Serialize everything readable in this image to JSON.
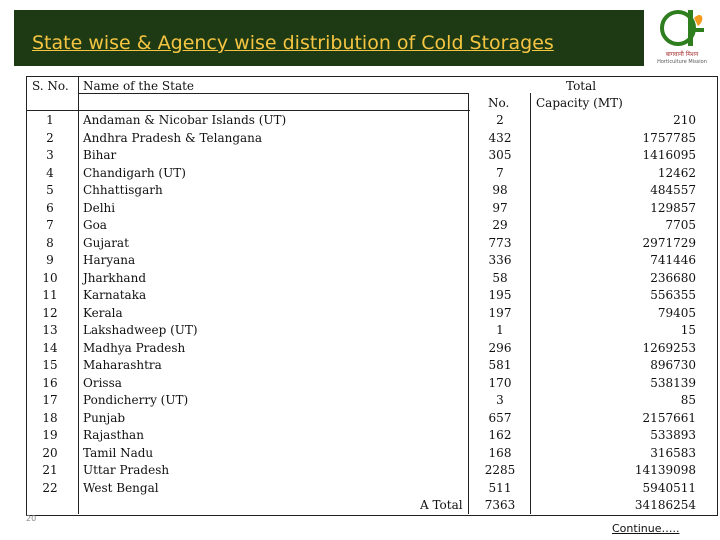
{
  "header": {
    "title": "State wise & Agency wise distribution of Cold Storages",
    "logo_line1": "बागवानी मिशन",
    "logo_line2": "Horticulture Mission"
  },
  "table": {
    "col_sno": "S. No.",
    "col_name": "Name of the State",
    "col_total": "Total",
    "col_no": "No.",
    "col_capacity": "Capacity (MT)",
    "rows": [
      {
        "sno": "1",
        "name": "Andaman & Nicobar Islands (UT)",
        "no": "2",
        "capacity": "210"
      },
      {
        "sno": "2",
        "name": "Andhra Pradesh & Telangana",
        "no": "432",
        "capacity": "1757785"
      },
      {
        "sno": "3",
        "name": "Bihar",
        "no": "305",
        "capacity": "1416095"
      },
      {
        "sno": "4",
        "name": "Chandigarh (UT)",
        "no": "7",
        "capacity": "12462"
      },
      {
        "sno": "5",
        "name": "Chhattisgarh",
        "no": "98",
        "capacity": "484557"
      },
      {
        "sno": "6",
        "name": "Delhi",
        "no": "97",
        "capacity": "129857"
      },
      {
        "sno": "7",
        "name": "Goa",
        "no": "29",
        "capacity": "7705"
      },
      {
        "sno": "8",
        "name": "Gujarat",
        "no": "773",
        "capacity": "2971729"
      },
      {
        "sno": "9",
        "name": "Haryana",
        "no": "336",
        "capacity": "741446"
      },
      {
        "sno": "10",
        "name": "Jharkhand",
        "no": "58",
        "capacity": "236680"
      },
      {
        "sno": "11",
        "name": "Karnataka",
        "no": "195",
        "capacity": "556355"
      },
      {
        "sno": "12",
        "name": "Kerala",
        "no": "197",
        "capacity": "79405"
      },
      {
        "sno": "13",
        "name": "Lakshadweep (UT)",
        "no": "1",
        "capacity": "15"
      },
      {
        "sno": "14",
        "name": "Madhya Pradesh",
        "no": "296",
        "capacity": "1269253"
      },
      {
        "sno": "15",
        "name": "Maharashtra",
        "no": "581",
        "capacity": "896730"
      },
      {
        "sno": "16",
        "name": "Orissa",
        "no": "170",
        "capacity": "538139"
      },
      {
        "sno": "17",
        "name": "Pondicherry (UT)",
        "no": "3",
        "capacity": "85"
      },
      {
        "sno": "18",
        "name": "Punjab",
        "no": "657",
        "capacity": "2157661"
      },
      {
        "sno": "19",
        "name": "Rajasthan",
        "no": "162",
        "capacity": "533893"
      },
      {
        "sno": "20",
        "name": "Tamil Nadu",
        "no": "168",
        "capacity": "316583"
      },
      {
        "sno": "21",
        "name": "Uttar Pradesh",
        "no": "2285",
        "capacity": "14139098"
      },
      {
        "sno": "22",
        "name": "West Bengal",
        "no": "511",
        "capacity": "5940511"
      }
    ],
    "total_label": "A Total",
    "total_no": "7363",
    "total_capacity": "34186254"
  },
  "footer": {
    "continue": "Continue…..",
    "page": "20"
  },
  "colors": {
    "title_band": "#1e3a14",
    "title_text": "#f5c542"
  }
}
